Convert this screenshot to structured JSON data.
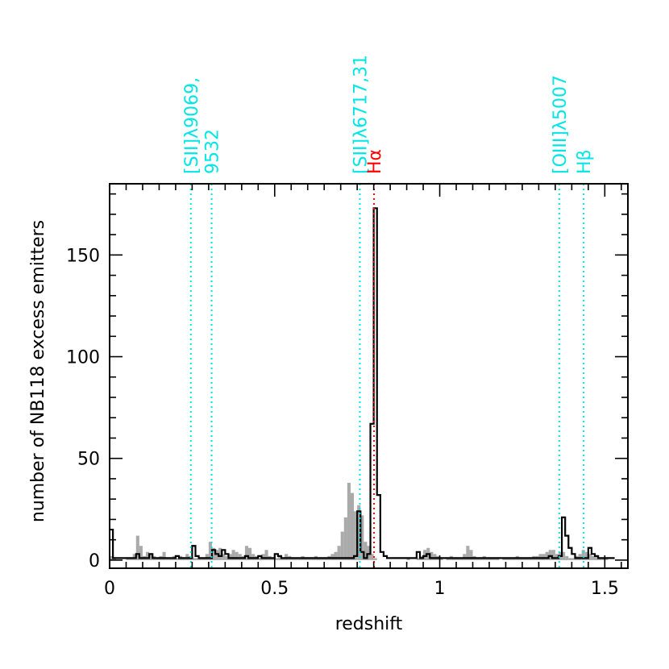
{
  "chart_data": {
    "type": "histogram",
    "xlabel": "redshift",
    "ylabel": "number of NB118 excess emitters",
    "xlim": [
      0,
      1.57
    ],
    "ylim": [
      -4,
      185
    ],
    "bin_width": 0.01,
    "x_ticks": [
      {
        "value": 0,
        "label": "0"
      },
      {
        "value": 0.5,
        "label": "0.5"
      },
      {
        "value": 1,
        "label": "1"
      },
      {
        "value": 1.5,
        "label": "1.5"
      }
    ],
    "y_ticks": [
      {
        "value": 0,
        "label": "0"
      },
      {
        "value": 50,
        "label": "50"
      },
      {
        "value": 100,
        "label": "100"
      },
      {
        "value": 150,
        "label": "150"
      }
    ],
    "gray_histogram": {
      "start": 0.0,
      "values": [
        2,
        1,
        0,
        0,
        0,
        1,
        1,
        3,
        12,
        7,
        2,
        4,
        3,
        2,
        1,
        2,
        4,
        1,
        1,
        2,
        1,
        2,
        1,
        3,
        2,
        1,
        1,
        1,
        1,
        3,
        9,
        6,
        5,
        6,
        3,
        2,
        3,
        5,
        4,
        3,
        2,
        7,
        6,
        3,
        2,
        1,
        3,
        5,
        2,
        1,
        1,
        2,
        1,
        3,
        2,
        1,
        1,
        1,
        2,
        1,
        1,
        1,
        2,
        1,
        1,
        1,
        2,
        3,
        4,
        7,
        14,
        21,
        38,
        33,
        24,
        27,
        22,
        9,
        7,
        3,
        1,
        0,
        0,
        0,
        0,
        0,
        0,
        0,
        0,
        0,
        1,
        0,
        0,
        1,
        2,
        5,
        6,
        4,
        3,
        2,
        1,
        0,
        1,
        2,
        1,
        1,
        1,
        3,
        7,
        5,
        2,
        1,
        1,
        2,
        1,
        1,
        1,
        1,
        0,
        1,
        1,
        1,
        1,
        2,
        1,
        1,
        1,
        1,
        2,
        2,
        3,
        3,
        4,
        5,
        5,
        3,
        4,
        4,
        2,
        1,
        1,
        2,
        3,
        5,
        4,
        3,
        2,
        2,
        1,
        1,
        1
      ]
    },
    "black_histogram": {
      "start": 0.0,
      "values": [
        15,
        1,
        1,
        1,
        1,
        1,
        1,
        1,
        3,
        1,
        1,
        1,
        3,
        1,
        1,
        1,
        1,
        1,
        1,
        1,
        2,
        1,
        1,
        1,
        1,
        7,
        2,
        1,
        1,
        1,
        1,
        5,
        3,
        2,
        5,
        3,
        1,
        1,
        1,
        1,
        1,
        2,
        1,
        1,
        1,
        2,
        1,
        1,
        1,
        1,
        3,
        2,
        1,
        1,
        1,
        1,
        1,
        1,
        1,
        1,
        1,
        1,
        1,
        1,
        1,
        1,
        1,
        1,
        1,
        1,
        1,
        1,
        1,
        1,
        2,
        24,
        4,
        1,
        3,
        67,
        173,
        32,
        4,
        2,
        1,
        1,
        1,
        1,
        1,
        1,
        1,
        1,
        1,
        4,
        1,
        2,
        3,
        1,
        1,
        1,
        1,
        1,
        1,
        1,
        1,
        1,
        1,
        1,
        1,
        1,
        1,
        1,
        1,
        1,
        1,
        1,
        1,
        1,
        1,
        1,
        1,
        1,
        1,
        1,
        1,
        1,
        1,
        1,
        1,
        1,
        1,
        1,
        1,
        2,
        1,
        1,
        2,
        21,
        12,
        6,
        3,
        1,
        1,
        1,
        1,
        6,
        3,
        2,
        1,
        1,
        1,
        1,
        1
      ]
    },
    "lines": [
      {
        "z": 0.246,
        "color": "#00e5e5",
        "label": "[SII]λ9069,"
      },
      {
        "z": 0.309,
        "color": "#00e5e5",
        "label": "9532"
      },
      {
        "z": 0.758,
        "color": "#00e5e5",
        "label": "[SII]λ6717,31"
      },
      {
        "z": 0.801,
        "color": "#ff0000",
        "label": "Hα"
      },
      {
        "z": 1.362,
        "color": "#00e5e5",
        "label": "[OIII]λ5007"
      },
      {
        "z": 1.436,
        "color": "#00e5e5",
        "label": "Hβ"
      }
    ],
    "colors": {
      "gray_fill": "#aaaaaa",
      "black_line": "#000000",
      "sii_lines": "#00e5e5",
      "halpha": "#ff0000"
    }
  }
}
